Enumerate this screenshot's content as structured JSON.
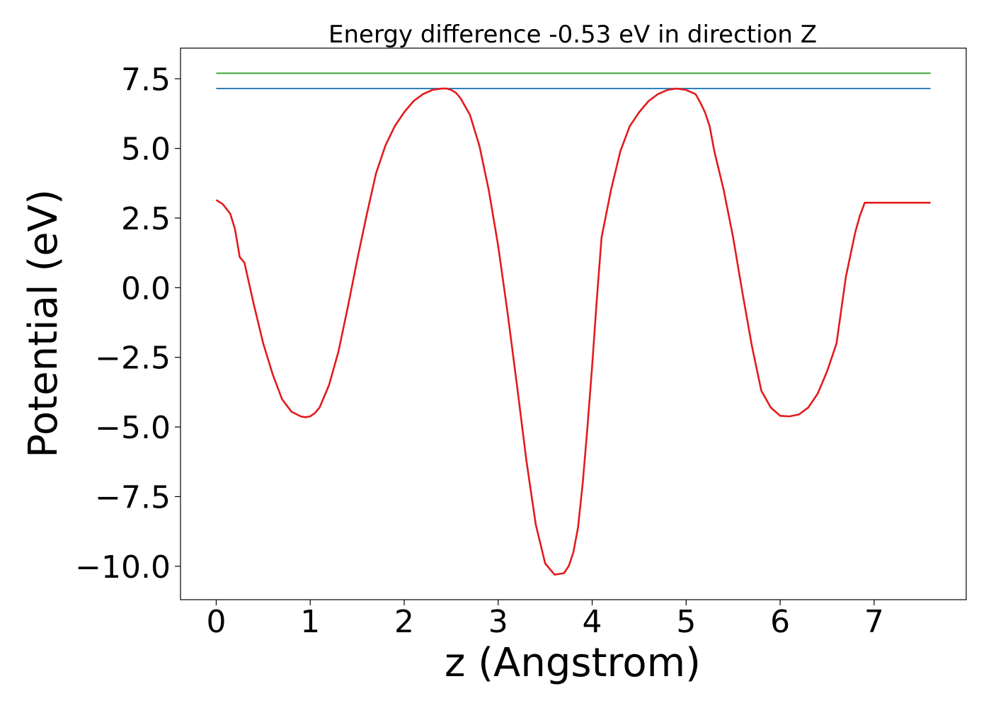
{
  "chart_data": {
    "type": "line",
    "title": "Energy difference -0.53 eV in direction Z",
    "xlabel": "z (Angstrom)",
    "ylabel": "Potential (eV)",
    "xlim": [
      -0.38,
      7.98
    ],
    "ylim": [
      -11.2,
      8.6
    ],
    "x_ticks": [
      0,
      1,
      2,
      3,
      4,
      5,
      6,
      7
    ],
    "x_tick_labels": [
      "0",
      "1",
      "2",
      "3",
      "4",
      "5",
      "6",
      "7"
    ],
    "y_ticks": [
      7.5,
      5.0,
      2.5,
      0.0,
      -2.5,
      -5.0,
      -7.5,
      -10.0
    ],
    "y_tick_labels": [
      "7.5",
      "5.0",
      "2.5",
      "0.0",
      "−2.5",
      "−5.0",
      "−7.5",
      "−10.0"
    ],
    "grid": false,
    "legend": "none",
    "series": [
      {
        "color": "#2ca02c",
        "x": [
          0,
          7.6
        ],
        "y": [
          7.7,
          7.7
        ]
      },
      {
        "color": "#1f77b4",
        "x": [
          0,
          7.6
        ],
        "y": [
          7.15,
          7.15
        ]
      },
      {
        "color": "#e31a1c",
        "x": [
          0.0,
          0.07,
          0.15,
          0.2,
          0.25,
          0.3,
          0.4,
          0.5,
          0.6,
          0.7,
          0.8,
          0.9,
          0.95,
          1.0,
          1.05,
          1.1,
          1.2,
          1.3,
          1.4,
          1.5,
          1.6,
          1.7,
          1.8,
          1.9,
          2.0,
          2.1,
          2.2,
          2.3,
          2.4,
          2.45,
          2.5,
          2.55,
          2.6,
          2.7,
          2.8,
          2.9,
          3.0,
          3.1,
          3.2,
          3.3,
          3.4,
          3.5,
          3.6,
          3.7,
          3.75,
          3.8,
          3.85,
          3.9,
          3.95,
          4.0,
          4.05,
          4.1,
          4.2,
          4.3,
          4.4,
          4.5,
          4.6,
          4.7,
          4.8,
          4.9,
          5.0,
          5.1,
          5.15,
          5.2,
          5.25,
          5.3,
          5.4,
          5.5,
          5.6,
          5.7,
          5.8,
          5.9,
          6.0,
          6.1,
          6.2,
          6.3,
          6.4,
          6.5,
          6.6,
          6.65,
          6.7,
          6.75,
          6.8,
          6.85,
          6.9,
          7.0,
          7.1,
          7.2,
          7.3,
          7.4,
          7.5,
          7.6
        ],
        "y": [
          3.15,
          3.0,
          2.65,
          2.1,
          1.1,
          0.9,
          -0.6,
          -2.0,
          -3.1,
          -4.0,
          -4.45,
          -4.62,
          -4.65,
          -4.62,
          -4.5,
          -4.3,
          -3.5,
          -2.3,
          -0.7,
          1.0,
          2.6,
          4.1,
          5.1,
          5.8,
          6.3,
          6.7,
          6.95,
          7.1,
          7.15,
          7.15,
          7.1,
          7.0,
          6.8,
          6.2,
          5.1,
          3.5,
          1.5,
          -0.9,
          -3.5,
          -6.2,
          -8.5,
          -9.9,
          -10.3,
          -10.25,
          -10.0,
          -9.5,
          -8.6,
          -7.0,
          -5.0,
          -2.8,
          -0.4,
          1.8,
          3.5,
          4.9,
          5.8,
          6.3,
          6.7,
          6.95,
          7.1,
          7.15,
          7.1,
          6.95,
          6.65,
          6.3,
          5.8,
          4.9,
          3.5,
          1.8,
          -0.2,
          -2.1,
          -3.7,
          -4.3,
          -4.6,
          -4.62,
          -4.55,
          -4.3,
          -3.8,
          -3.0,
          -2.0,
          -0.8,
          0.4,
          1.2,
          2.0,
          2.6,
          3.05,
          3.05,
          3.05,
          3.05,
          3.05,
          3.05,
          3.05,
          3.05
        ]
      }
    ]
  }
}
